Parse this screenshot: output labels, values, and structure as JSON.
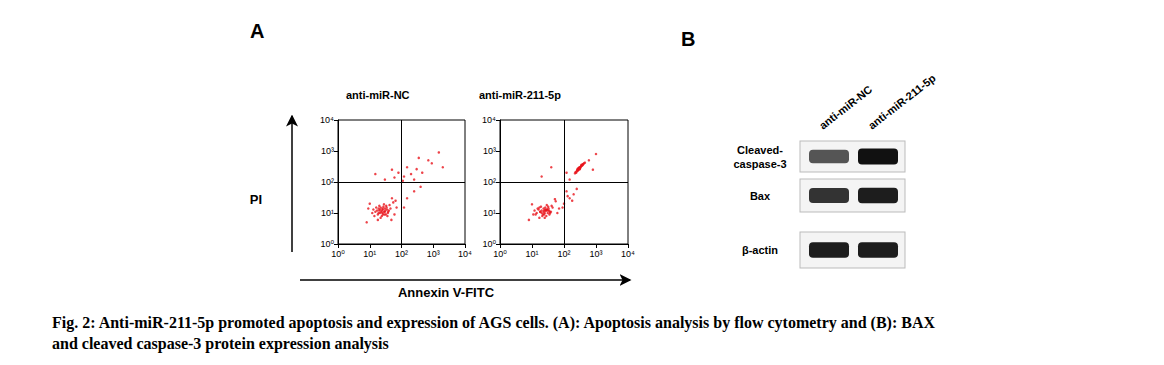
{
  "figure": {
    "panel_labels": [
      "A",
      "B"
    ],
    "x_label": "Annexin V-FITC",
    "y_label": "PI",
    "caption": [
      "Fig. 2: Anti-miR-211-5p promoted apoptosis and expression of AGS cells. (A): Apoptosis analysis by flow cytometry and (B): BAX",
      "and cleaved caspase-3 protein expression analysis"
    ]
  },
  "chart_data": [
    {
      "type": "scatter",
      "title": "anti-miR-NC",
      "log": true,
      "color": "#e8141c",
      "marker": "circle",
      "xlim": [
        1,
        10000
      ],
      "ylim": [
        1,
        10000
      ],
      "xticks": [
        {
          "value": 1,
          "label": "10⁰"
        },
        {
          "value": 10,
          "label": "10¹"
        },
        {
          "value": 100,
          "label": "10²"
        },
        {
          "value": 1000,
          "label": "10³"
        },
        {
          "value": 10000,
          "label": "10⁴"
        }
      ],
      "yticks": [
        {
          "value": 1,
          "label": "10⁰"
        },
        {
          "value": 10,
          "label": "10¹"
        },
        {
          "value": 100,
          "label": "10²"
        },
        {
          "value": 1000,
          "label": "10³"
        },
        {
          "value": 10000,
          "label": "10⁴"
        }
      ],
      "gates": {
        "x": 100,
        "y": 100
      },
      "x": [
        20,
        25,
        30,
        18,
        22,
        28,
        35,
        15,
        24,
        32,
        19,
        27,
        40,
        14,
        21,
        26,
        33,
        17,
        23,
        29,
        37,
        16,
        31,
        22,
        45,
        12,
        28,
        20,
        36,
        24,
        18,
        42,
        26,
        30,
        21,
        34,
        13,
        25,
        38,
        19,
        8,
        55,
        60,
        10,
        50,
        70,
        48,
        9,
        65,
        120,
        200,
        300,
        450,
        700,
        150,
        250,
        900,
        60,
        1500,
        350,
        110,
        80,
        2000,
        150,
        250,
        120,
        400,
        30,
        50,
        15
      ],
      "values": [
        12,
        10,
        14,
        9,
        15,
        11,
        13,
        11,
        8,
        9,
        14,
        16,
        12,
        8,
        10,
        13,
        17,
        12,
        11,
        9,
        10,
        15,
        12,
        7,
        14,
        10,
        19,
        17,
        8,
        12,
        6,
        18,
        9,
        11,
        13,
        15,
        13,
        14,
        11,
        10,
        5,
        22,
        9,
        20,
        30,
        15,
        6,
        14,
        25,
        150,
        180,
        260,
        200,
        500,
        300,
        120,
        400,
        140,
        900,
        600,
        110,
        200,
        300,
        30,
        50,
        15,
        70,
        120,
        250,
        180
      ]
    },
    {
      "type": "scatter",
      "title": "anti-miR-211-5p",
      "log": true,
      "color": "#e8141c",
      "marker": "circle",
      "xlim": [
        1,
        10000
      ],
      "ylim": [
        1,
        10000
      ],
      "xticks": [
        {
          "value": 1,
          "label": "10⁰"
        },
        {
          "value": 10,
          "label": "10¹"
        },
        {
          "value": 100,
          "label": "10²"
        },
        {
          "value": 1000,
          "label": "10³"
        },
        {
          "value": 10000,
          "label": "10⁴"
        }
      ],
      "yticks": [
        {
          "value": 1,
          "label": "10⁰"
        },
        {
          "value": 10,
          "label": "10¹"
        },
        {
          "value": 100,
          "label": "10²"
        },
        {
          "value": 1000,
          "label": "10³"
        },
        {
          "value": 10000,
          "label": "10⁴"
        }
      ],
      "gates": {
        "x": 100,
        "y": 100
      },
      "x": [
        18,
        24,
        29,
        20,
        23,
        27,
        34,
        14,
        25,
        31,
        17,
        26,
        39,
        13,
        22,
        27,
        32,
        16,
        24,
        28,
        36,
        15,
        30,
        21,
        44,
        11,
        29,
        19,
        35,
        23,
        17,
        41,
        25,
        31,
        20,
        33,
        12,
        26,
        37,
        18,
        8,
        55,
        62,
        10,
        52,
        70,
        250,
        280,
        300,
        320,
        260,
        350,
        380,
        300,
        270,
        330,
        400,
        290,
        310,
        240,
        360,
        420,
        280,
        340,
        300,
        260,
        220,
        450,
        320,
        370,
        290,
        310,
        350,
        230,
        390,
        270,
        100,
        150,
        200,
        120,
        180,
        250,
        130,
        90,
        20,
        40,
        150,
        600,
        1000,
        120,
        800
      ],
      "values": [
        11,
        9,
        13,
        10,
        14,
        12,
        12,
        10,
        7,
        10,
        15,
        15,
        11,
        9,
        9,
        12,
        16,
        13,
        12,
        8,
        11,
        14,
        13,
        8,
        15,
        9,
        18,
        16,
        9,
        11,
        7,
        17,
        10,
        12,
        12,
        14,
        12,
        13,
        10,
        11,
        6,
        24,
        10,
        19,
        28,
        14,
        220,
        250,
        280,
        300,
        240,
        330,
        360,
        260,
        230,
        310,
        380,
        270,
        290,
        200,
        350,
        400,
        260,
        320,
        300,
        250,
        190,
        420,
        280,
        340,
        280,
        260,
        360,
        210,
        370,
        270,
        20,
        30,
        40,
        50,
        25,
        60,
        35,
        15,
        150,
        300,
        120,
        500,
        800,
        200,
        250
      ]
    }
  ],
  "blot": {
    "lanes": [
      "anti-miR-NC",
      "anti-miR-211-5p"
    ],
    "rows": [
      {
        "label": [
          "Cleaved-",
          "caspase-3"
        ],
        "intensity": [
          0.7,
          1.0
        ]
      },
      {
        "label": [
          "Bax"
        ],
        "intensity": [
          0.85,
          0.95
        ]
      },
      {
        "label": [
          "β-actin"
        ],
        "intensity": [
          0.95,
          0.95
        ]
      }
    ]
  }
}
